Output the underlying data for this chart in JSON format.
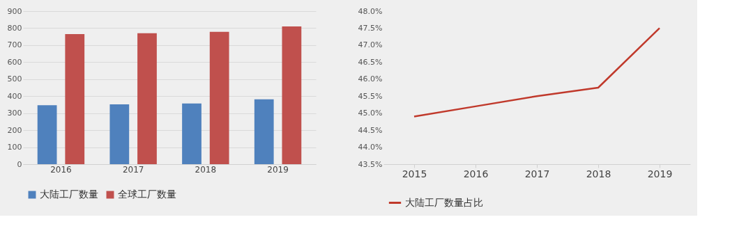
{
  "chart_data": [
    {
      "type": "bar",
      "categories": [
        "2016",
        "2017",
        "2018",
        "2019"
      ],
      "series": [
        {
          "name": "大陆工厂数量",
          "color": "#4f81bd",
          "values": [
            347,
            352,
            357,
            381
          ]
        },
        {
          "name": "全球工厂数量",
          "color": "#c0504d",
          "values": [
            765,
            770,
            778,
            810
          ]
        }
      ],
      "ylim": [
        0,
        900
      ],
      "yticks": [
        0,
        100,
        200,
        300,
        400,
        500,
        600,
        700,
        800,
        900
      ],
      "grid": "y",
      "legend": "bottom"
    },
    {
      "type": "line",
      "categories": [
        "2015",
        "2016",
        "2017",
        "2018",
        "2019"
      ],
      "series": [
        {
          "name": "大陆工厂数量占比",
          "color": "#c0392b",
          "values": [
            44.9,
            45.2,
            45.5,
            45.75,
            47.5
          ]
        }
      ],
      "ylim": [
        43.5,
        48.0
      ],
      "yticks": [
        {
          "value": 43.5,
          "label": "43.5%"
        },
        {
          "value": 44.0,
          "label": "44.0%"
        },
        {
          "value": 44.5,
          "label": "44.5%"
        },
        {
          "value": 45.0,
          "label": "45.0%"
        },
        {
          "value": 45.5,
          "label": "45.5%"
        },
        {
          "value": 46.0,
          "label": "46.0%"
        },
        {
          "value": 46.5,
          "label": "46.5%"
        },
        {
          "value": 47.0,
          "label": "47.0%"
        },
        {
          "value": 47.5,
          "label": "47.5%"
        },
        {
          "value": 48.0,
          "label": "48.0%"
        }
      ],
      "grid": false,
      "legend": "bottom",
      "marker": "none",
      "line_style": "solid"
    }
  ]
}
